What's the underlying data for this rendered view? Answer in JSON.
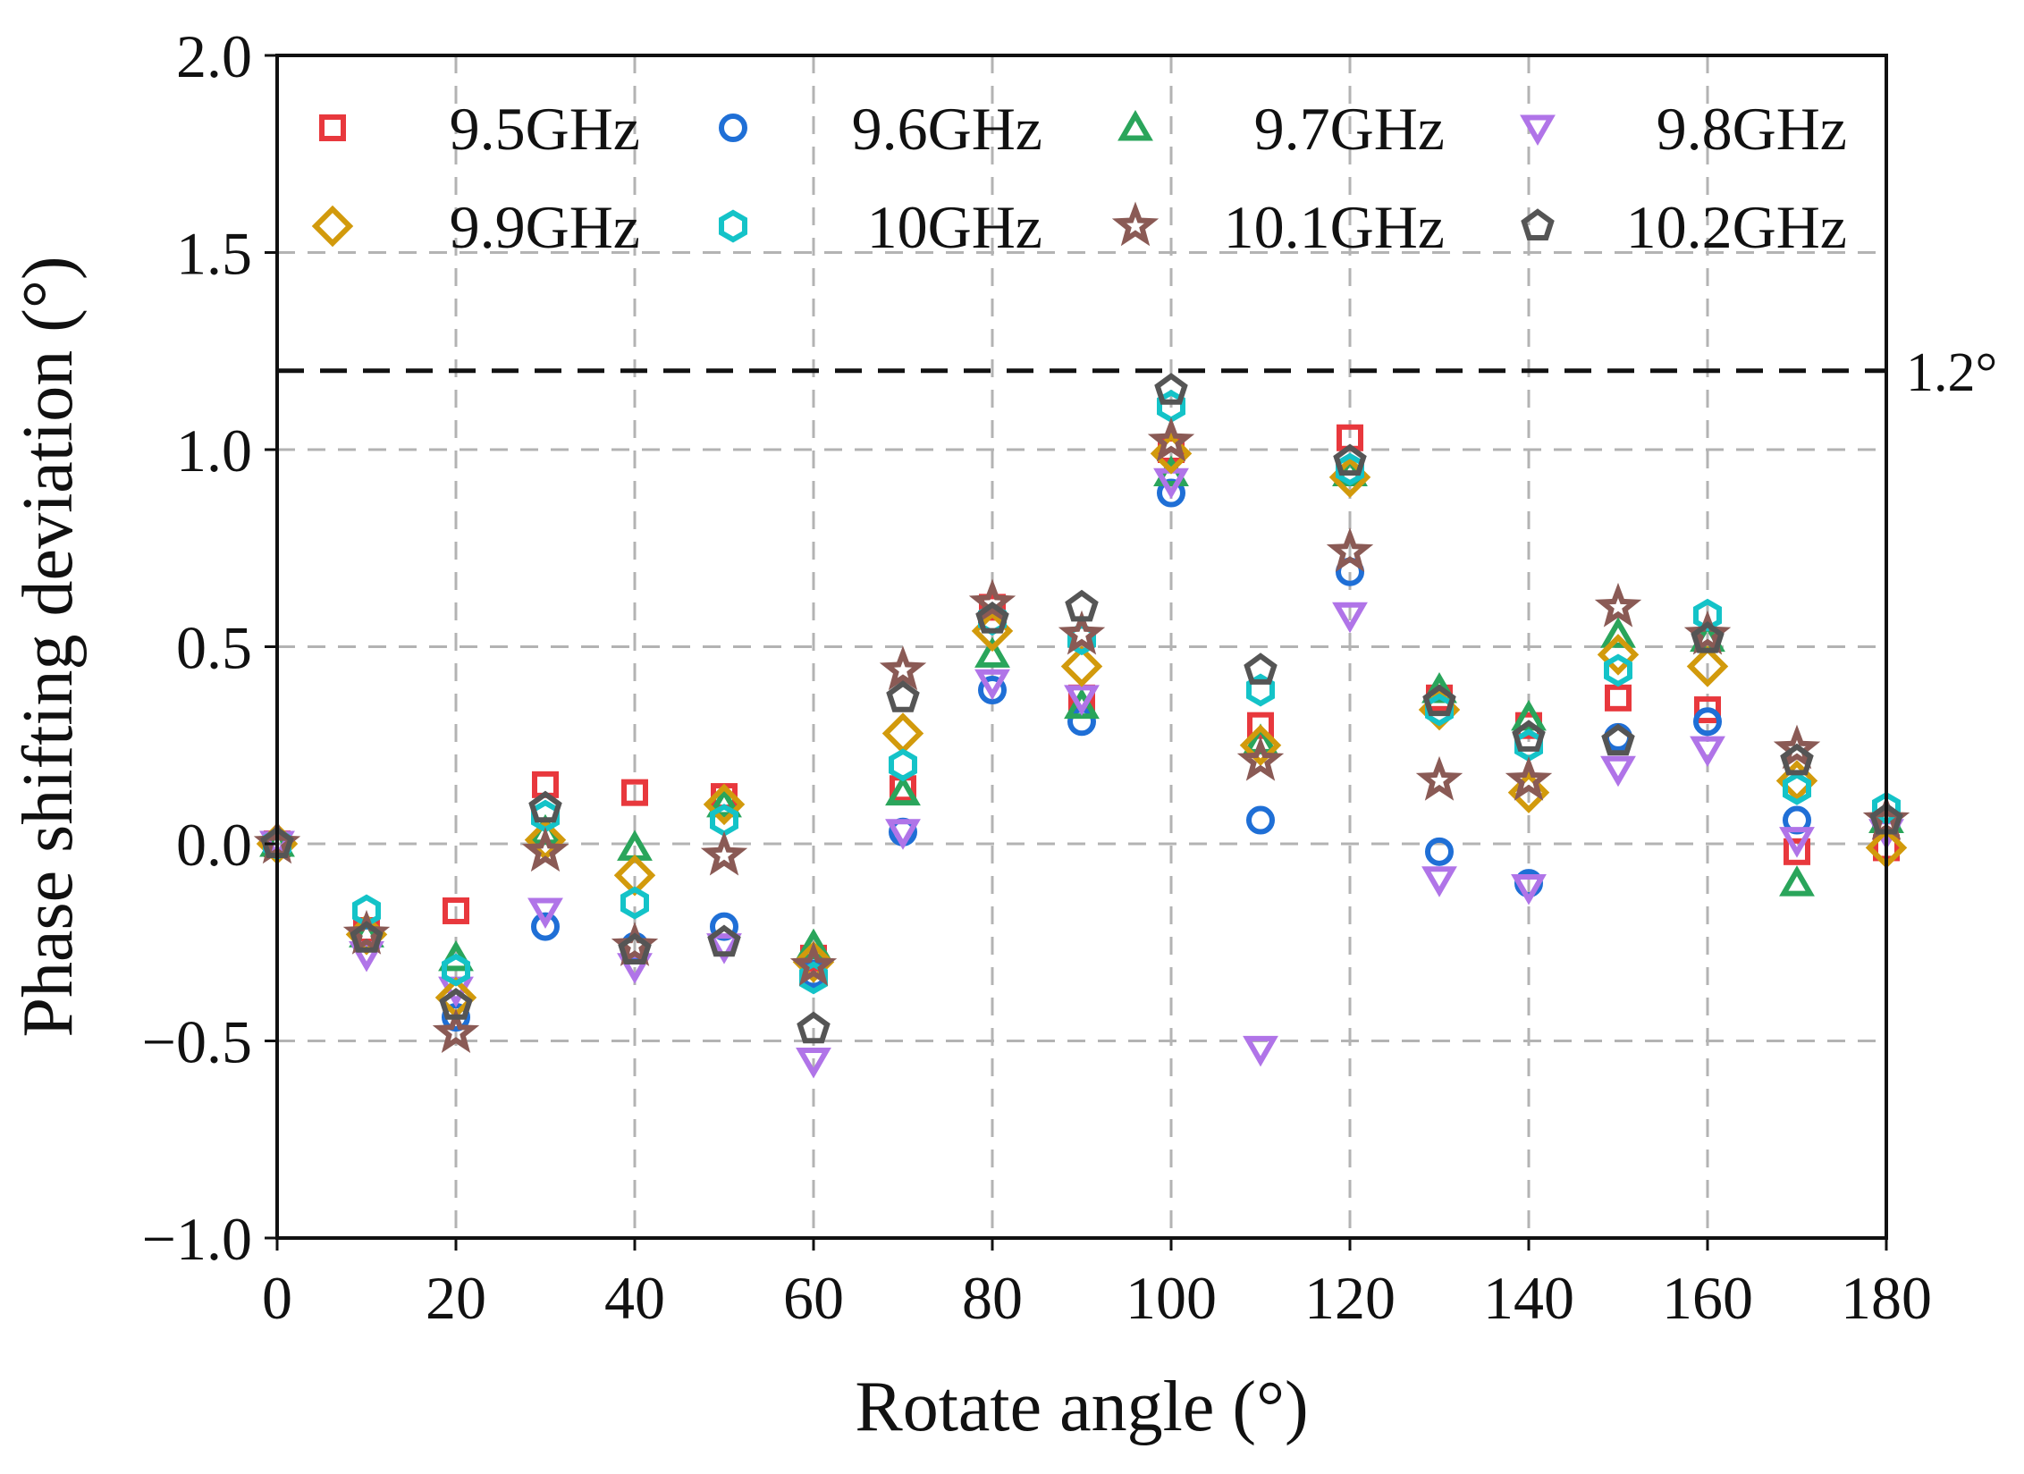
{
  "chart_data": {
    "type": "scatter",
    "title": "",
    "xlabel": "Rotate angle (°)",
    "ylabel": "Phase shifting deviation (°)",
    "xlim": [
      0,
      180
    ],
    "ylim": [
      -1.0,
      2.0
    ],
    "xticks": [
      "0",
      "20",
      "40",
      "60",
      "80",
      "100",
      "120",
      "140",
      "160",
      "180"
    ],
    "xtick_values": [
      0,
      20,
      40,
      60,
      80,
      100,
      120,
      140,
      160,
      180
    ],
    "yticks": [
      "2.0",
      "1.5",
      "1.0",
      "0.5",
      "0.0",
      "−0.5",
      "−1.0"
    ],
    "ytick_values": [
      2.0,
      1.5,
      1.0,
      0.5,
      0.0,
      -0.5,
      -1.0
    ],
    "grid": true,
    "legend_position": "top",
    "reference_line": {
      "value": 1.2,
      "label": "1.2°",
      "style": "dashed",
      "color": "#111111"
    },
    "x": [
      0,
      10,
      20,
      30,
      40,
      50,
      60,
      70,
      80,
      90,
      100,
      110,
      120,
      130,
      140,
      150,
      160,
      170,
      180
    ],
    "series": [
      {
        "name": "9.5GHz",
        "marker": "square",
        "color": "#e8383d",
        "values": [
          0.0,
          -0.22,
          -0.17,
          0.15,
          0.13,
          0.12,
          -0.29,
          0.14,
          0.6,
          0.37,
          1.0,
          0.3,
          1.03,
          0.37,
          0.3,
          0.37,
          0.34,
          -0.02,
          -0.01
        ]
      },
      {
        "name": "9.6GHz",
        "marker": "circle",
        "color": "#1f6fd6",
        "values": [
          0.0,
          -0.24,
          -0.44,
          -0.21,
          -0.26,
          -0.21,
          -0.33,
          0.03,
          0.39,
          0.31,
          0.89,
          0.06,
          0.69,
          -0.02,
          -0.1,
          0.27,
          0.31,
          0.06,
          0.05
        ]
      },
      {
        "name": "9.7GHz",
        "marker": "triangle-up",
        "color": "#2aa55b",
        "values": [
          0.0,
          -0.23,
          -0.29,
          0.03,
          -0.01,
          0.1,
          -0.26,
          0.13,
          0.48,
          0.35,
          0.94,
          0.26,
          0.94,
          0.39,
          0.32,
          0.53,
          0.52,
          -0.1,
          0.06
        ]
      },
      {
        "name": "9.8GHz",
        "marker": "triangle-down",
        "color": "#b074e8",
        "values": [
          0.0,
          -0.28,
          -0.37,
          -0.17,
          -0.31,
          -0.26,
          -0.55,
          0.03,
          0.41,
          0.37,
          0.92,
          -0.52,
          0.58,
          -0.09,
          -0.11,
          0.19,
          0.24,
          0.01,
          0.03
        ]
      },
      {
        "name": "9.9GHz",
        "marker": "diamond",
        "color": "#d29a0c",
        "values": [
          0.0,
          -0.23,
          -0.39,
          0.01,
          -0.08,
          0.1,
          -0.3,
          0.28,
          0.54,
          0.45,
          0.99,
          0.25,
          0.93,
          0.34,
          0.13,
          0.48,
          0.45,
          0.16,
          -0.01
        ]
      },
      {
        "name": "10GHz",
        "marker": "hexagon",
        "color": "#14c3c8",
        "values": [
          0.0,
          -0.17,
          -0.32,
          0.07,
          -0.15,
          0.06,
          -0.34,
          0.2,
          0.57,
          0.52,
          1.11,
          0.39,
          0.95,
          0.34,
          0.25,
          0.44,
          0.58,
          0.14,
          0.09
        ]
      },
      {
        "name": "10.1GHz",
        "marker": "star",
        "color": "#8a5a55",
        "values": [
          0.0,
          -0.23,
          -0.48,
          -0.02,
          -0.26,
          -0.03,
          -0.31,
          0.44,
          0.61,
          0.53,
          1.02,
          0.21,
          0.74,
          0.16,
          0.16,
          0.6,
          0.53,
          0.24,
          0.06
        ]
      },
      {
        "name": "10.2GHz",
        "marker": "pentagon",
        "color": "#555555",
        "values": [
          0.0,
          -0.24,
          -0.41,
          0.09,
          -0.27,
          -0.25,
          -0.47,
          0.37,
          0.57,
          0.6,
          1.15,
          0.44,
          0.97,
          0.36,
          0.27,
          0.26,
          0.52,
          0.21,
          0.06
        ]
      }
    ]
  }
}
